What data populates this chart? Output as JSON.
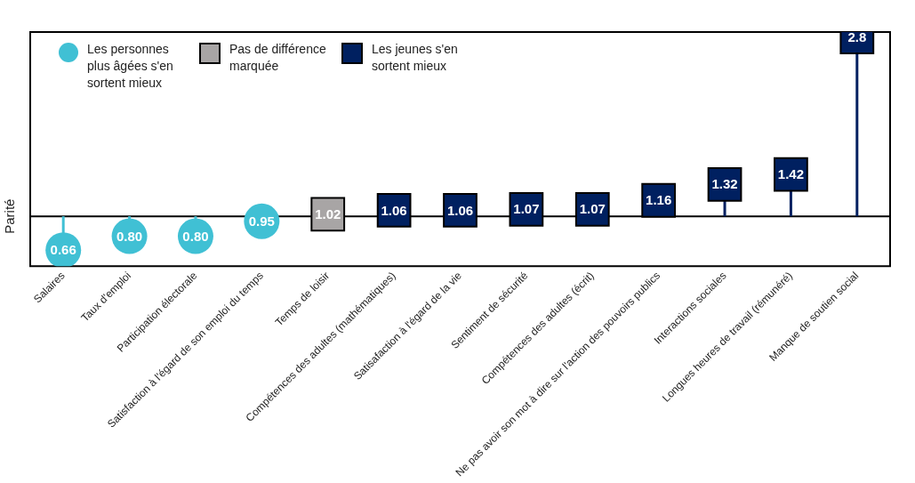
{
  "chart_data": {
    "type": "lollipop",
    "categories": [
      "Salaires",
      "Taux d'emploi",
      "Participation électorale",
      "Satisfaction à l'égard de son emploi du temps",
      "Temps de loisir",
      "Compétences des adultes (mathématiques)",
      "Satisafaction à l'égard de la vie",
      "Sentiment de sécurité",
      "Compétences des adultes (écrit)",
      "Ne pas avoir son mot à dire sur l'action des pouvoirs publics",
      "Interactions sociales",
      "Longues heures de travail (rémunéré)",
      "Manque de soutien social"
    ],
    "series": [
      {
        "name": "Les personnes plus âgées s'en sortent mieux",
        "color": "#40c0d4",
        "marker": "circle",
        "values": [
          0.66,
          0.8,
          0.8,
          0.95,
          null,
          null,
          null,
          null,
          null,
          null,
          null,
          null,
          null
        ],
        "value_labels": [
          "0.66",
          "0.80",
          "0.80",
          "0.95",
          null,
          null,
          null,
          null,
          null,
          null,
          null,
          null,
          null
        ]
      },
      {
        "name": "Pas de différence marquée",
        "color": "#a8a5a5",
        "marker": "square",
        "values": [
          null,
          null,
          null,
          null,
          1.02,
          null,
          null,
          null,
          null,
          null,
          null,
          null,
          null
        ],
        "value_labels": [
          null,
          null,
          null,
          null,
          "1.02",
          null,
          null,
          null,
          null,
          null,
          null,
          null,
          null
        ]
      },
      {
        "name": "Les jeunes s'en sortent mieux",
        "color": "#002060",
        "marker": "square",
        "values": [
          null,
          null,
          null,
          null,
          null,
          1.06,
          1.06,
          1.07,
          1.07,
          1.16,
          1.32,
          1.42,
          2.8
        ],
        "value_labels": [
          null,
          null,
          null,
          null,
          null,
          "1.06",
          "1.06",
          "1.07",
          "1.07",
          "1.16",
          "1.32",
          "1.42",
          "2.8"
        ]
      }
    ],
    "ylim": [
      0.5,
      2.85
    ],
    "ref_lines": [
      {
        "axis": "y",
        "value": 1,
        "label": "Parité",
        "color": "#000000"
      }
    ],
    "grid": false,
    "legend": "top left"
  }
}
